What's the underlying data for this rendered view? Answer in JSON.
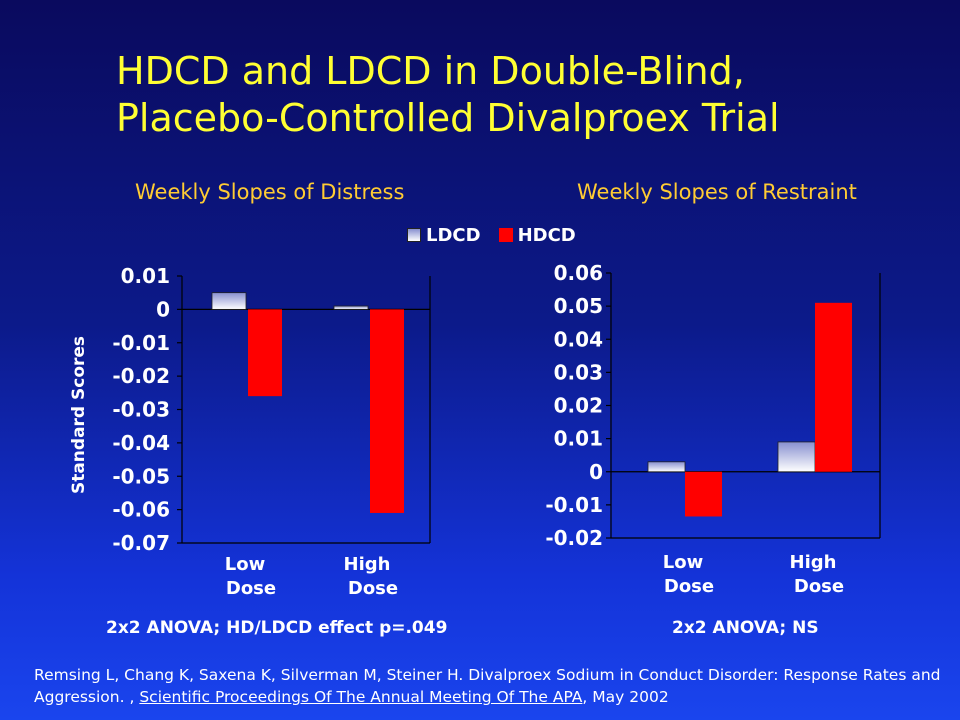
{
  "slide": {
    "title_line1": "HDCD and LDCD in Double-Blind,",
    "title_line2": "Placebo-Controlled Divalproex Trial",
    "left_subtitle": "Weekly Slopes of Distress",
    "right_subtitle": "Weekly Slopes of Restraint",
    "left_note": "2x2 ANOVA; HD/LDCD effect p=.049",
    "right_note": "2x2 ANOVA; NS",
    "citation_part1": "Remsing L, Chang K, Saxena K, Silverman M, Steiner H. Divalproex Sodium in Conduct Disorder: Response Rates and Aggression. , ",
    "citation_journal": "Scientific Proceedings Of The Annual Meeting Of The APA",
    "citation_part2": ",  May 2002",
    "colors": {
      "title": "#ffff33",
      "subtitle": "#ffcc33",
      "hdcd": "#ff0000",
      "ldcd_top": "#8890d0",
      "ldcd_bottom": "#ffffff"
    }
  },
  "legend": {
    "ldcd": "LDCD",
    "hdcd": "HDCD"
  },
  "chart_data": [
    {
      "type": "bar",
      "title": "Weekly Slopes of Distress",
      "ylabel": "Standard Scores",
      "categories": [
        "Low Dose",
        "High Dose"
      ],
      "category_lines": [
        [
          "Low",
          "Dose"
        ],
        [
          "High",
          "Dose"
        ]
      ],
      "series": [
        {
          "name": "LDCD",
          "values": [
            0.005,
            0.001
          ]
        },
        {
          "name": "HDCD",
          "values": [
            -0.026,
            -0.061
          ]
        }
      ],
      "ylim": [
        -0.07,
        0.01
      ],
      "yticks": [
        0.01,
        0,
        -0.01,
        -0.02,
        -0.03,
        -0.04,
        -0.05,
        -0.06,
        -0.07
      ],
      "ytick_labels": [
        "0.01",
        "0",
        "-0.01",
        "-0.02",
        "-0.03",
        "-0.04",
        "-0.05",
        "-0.06",
        "-0.07"
      ],
      "grid": false
    },
    {
      "type": "bar",
      "title": "Weekly Slopes of Restraint",
      "ylabel": "",
      "categories": [
        "Low Dose",
        "High Dose"
      ],
      "category_lines": [
        [
          "Low",
          "Dose"
        ],
        [
          "High",
          "Dose"
        ]
      ],
      "series": [
        {
          "name": "LDCD",
          "values": [
            0.003,
            0.009
          ]
        },
        {
          "name": "HDCD",
          "values": [
            -0.0135,
            0.051
          ]
        }
      ],
      "ylim": [
        -0.02,
        0.06
      ],
      "yticks": [
        0.06,
        0.05,
        0.04,
        0.03,
        0.02,
        0.01,
        0,
        -0.01,
        -0.02
      ],
      "ytick_labels": [
        "0.06",
        "0.05",
        "0.04",
        "0.03",
        "0.02",
        "0.01",
        "0",
        "-0.01",
        "-0.02"
      ],
      "grid": false
    }
  ]
}
